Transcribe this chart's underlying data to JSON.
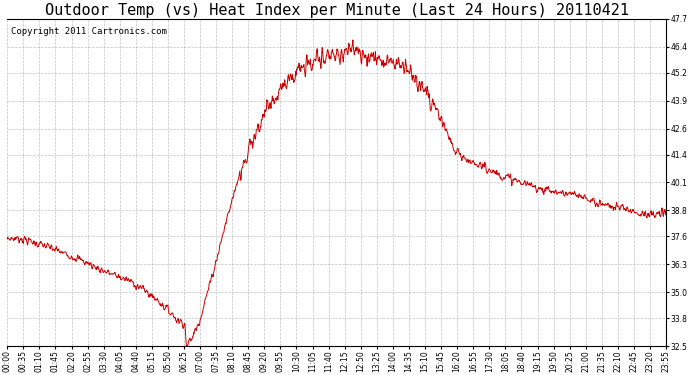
{
  "title": "Outdoor Temp (vs) Heat Index per Minute (Last 24 Hours) 20110421",
  "copyright_text": "Copyright 2011 Cartronics.com",
  "line_color": "#cc0000",
  "background_color": "#ffffff",
  "plot_bg_color": "#ffffff",
  "grid_color": "#bbbbbb",
  "ylim": [
    32.5,
    47.7
  ],
  "yticks": [
    32.5,
    33.8,
    35.0,
    36.3,
    37.6,
    38.8,
    40.1,
    41.4,
    42.6,
    43.9,
    45.2,
    46.4,
    47.7
  ],
  "title_fontsize": 11,
  "copyright_fontsize": 6.5,
  "tick_fontsize": 5.5,
  "x_tick_labels": [
    "00:00",
    "00:35",
    "01:10",
    "01:45",
    "02:20",
    "02:55",
    "03:30",
    "04:05",
    "04:40",
    "05:15",
    "05:50",
    "06:25",
    "07:00",
    "07:35",
    "08:10",
    "08:45",
    "09:20",
    "09:55",
    "10:30",
    "11:05",
    "11:40",
    "12:15",
    "12:50",
    "13:25",
    "14:00",
    "14:35",
    "15:10",
    "15:45",
    "16:20",
    "16:55",
    "17:30",
    "18:05",
    "18:40",
    "19:15",
    "19:50",
    "20:25",
    "21:00",
    "21:35",
    "22:10",
    "22:45",
    "23:20",
    "23:55"
  ]
}
